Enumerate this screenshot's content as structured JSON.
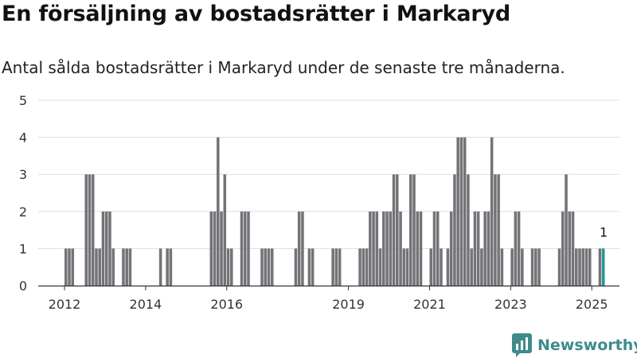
{
  "title": "En försäljning av bostadsrätter i Markaryd",
  "subtitle": "Antal sålda bostadsrätter i Markaryd under de senaste tre månaderna.",
  "logo_text": "Newsworthy",
  "colors": {
    "bar": "#747378",
    "highlight": "#23978f",
    "grid": "#dddddd",
    "axis": "#333333"
  },
  "chart_data": {
    "type": "bar",
    "ylim": [
      0,
      5
    ],
    "yticks": [
      0,
      1,
      2,
      3,
      4,
      5
    ],
    "xticks": [
      "2012",
      "2014",
      "2016",
      "2019",
      "2021",
      "2023",
      "2025"
    ],
    "annotation": "1",
    "grid": true,
    "series": [
      {
        "values": [
          {
            "x": "2012-01",
            "y": 1
          },
          {
            "x": "2012-02",
            "y": 1
          },
          {
            "x": "2012-03",
            "y": 1
          },
          {
            "x": "2012-07",
            "y": 3
          },
          {
            "x": "2012-08",
            "y": 3
          },
          {
            "x": "2012-09",
            "y": 3
          },
          {
            "x": "2012-10",
            "y": 1
          },
          {
            "x": "2012-11",
            "y": 1
          },
          {
            "x": "2012-12",
            "y": 2
          },
          {
            "x": "2013-01",
            "y": 2
          },
          {
            "x": "2013-02",
            "y": 2
          },
          {
            "x": "2013-03",
            "y": 1
          },
          {
            "x": "2013-06",
            "y": 1
          },
          {
            "x": "2013-07",
            "y": 1
          },
          {
            "x": "2013-08",
            "y": 1
          },
          {
            "x": "2014-05",
            "y": 1
          },
          {
            "x": "2014-07",
            "y": 1
          },
          {
            "x": "2014-08",
            "y": 1
          },
          {
            "x": "2015-08",
            "y": 2
          },
          {
            "x": "2015-09",
            "y": 2
          },
          {
            "x": "2015-10",
            "y": 4
          },
          {
            "x": "2015-11",
            "y": 2
          },
          {
            "x": "2015-12",
            "y": 3
          },
          {
            "x": "2016-01",
            "y": 1
          },
          {
            "x": "2016-02",
            "y": 1
          },
          {
            "x": "2016-05",
            "y": 2
          },
          {
            "x": "2016-06",
            "y": 2
          },
          {
            "x": "2016-07",
            "y": 2
          },
          {
            "x": "2016-11",
            "y": 1
          },
          {
            "x": "2016-12",
            "y": 1
          },
          {
            "x": "2017-01",
            "y": 1
          },
          {
            "x": "2017-02",
            "y": 1
          },
          {
            "x": "2017-09",
            "y": 1
          },
          {
            "x": "2017-10",
            "y": 2
          },
          {
            "x": "2017-11",
            "y": 2
          },
          {
            "x": "2018-01",
            "y": 1
          },
          {
            "x": "2018-02",
            "y": 1
          },
          {
            "x": "2018-08",
            "y": 1
          },
          {
            "x": "2018-09",
            "y": 1
          },
          {
            "x": "2018-10",
            "y": 1
          },
          {
            "x": "2019-04",
            "y": 1
          },
          {
            "x": "2019-05",
            "y": 1
          },
          {
            "x": "2019-06",
            "y": 1
          },
          {
            "x": "2019-07",
            "y": 2
          },
          {
            "x": "2019-08",
            "y": 2
          },
          {
            "x": "2019-09",
            "y": 2
          },
          {
            "x": "2019-10",
            "y": 1
          },
          {
            "x": "2019-11",
            "y": 2
          },
          {
            "x": "2019-12",
            "y": 2
          },
          {
            "x": "2020-01",
            "y": 2
          },
          {
            "x": "2020-02",
            "y": 3
          },
          {
            "x": "2020-03",
            "y": 3
          },
          {
            "x": "2020-04",
            "y": 2
          },
          {
            "x": "2020-05",
            "y": 1
          },
          {
            "x": "2020-06",
            "y": 1
          },
          {
            "x": "2020-07",
            "y": 3
          },
          {
            "x": "2020-08",
            "y": 3
          },
          {
            "x": "2020-09",
            "y": 2
          },
          {
            "x": "2020-10",
            "y": 2
          },
          {
            "x": "2021-01",
            "y": 1
          },
          {
            "x": "2021-02",
            "y": 2
          },
          {
            "x": "2021-03",
            "y": 2
          },
          {
            "x": "2021-04",
            "y": 1
          },
          {
            "x": "2021-06",
            "y": 1
          },
          {
            "x": "2021-07",
            "y": 2
          },
          {
            "x": "2021-08",
            "y": 3
          },
          {
            "x": "2021-09",
            "y": 4
          },
          {
            "x": "2021-10",
            "y": 4
          },
          {
            "x": "2021-11",
            "y": 4
          },
          {
            "x": "2021-12",
            "y": 3
          },
          {
            "x": "2022-01",
            "y": 1
          },
          {
            "x": "2022-02",
            "y": 2
          },
          {
            "x": "2022-03",
            "y": 2
          },
          {
            "x": "2022-04",
            "y": 1
          },
          {
            "x": "2022-05",
            "y": 2
          },
          {
            "x": "2022-06",
            "y": 2
          },
          {
            "x": "2022-07",
            "y": 4
          },
          {
            "x": "2022-08",
            "y": 3
          },
          {
            "x": "2022-09",
            "y": 3
          },
          {
            "x": "2022-10",
            "y": 1
          },
          {
            "x": "2023-01",
            "y": 1
          },
          {
            "x": "2023-02",
            "y": 2
          },
          {
            "x": "2023-03",
            "y": 2
          },
          {
            "x": "2023-04",
            "y": 1
          },
          {
            "x": "2023-07",
            "y": 1
          },
          {
            "x": "2023-08",
            "y": 1
          },
          {
            "x": "2023-09",
            "y": 1
          },
          {
            "x": "2024-03",
            "y": 1
          },
          {
            "x": "2024-04",
            "y": 2
          },
          {
            "x": "2024-05",
            "y": 3
          },
          {
            "x": "2024-06",
            "y": 2
          },
          {
            "x": "2024-07",
            "y": 2
          },
          {
            "x": "2024-08",
            "y": 1
          },
          {
            "x": "2024-09",
            "y": 1
          },
          {
            "x": "2024-10",
            "y": 1
          },
          {
            "x": "2024-11",
            "y": 1
          },
          {
            "x": "2024-12",
            "y": 1
          },
          {
            "x": "2025-03",
            "y": 1
          },
          {
            "x": "2025-04",
            "y": 1
          }
        ]
      }
    ]
  }
}
